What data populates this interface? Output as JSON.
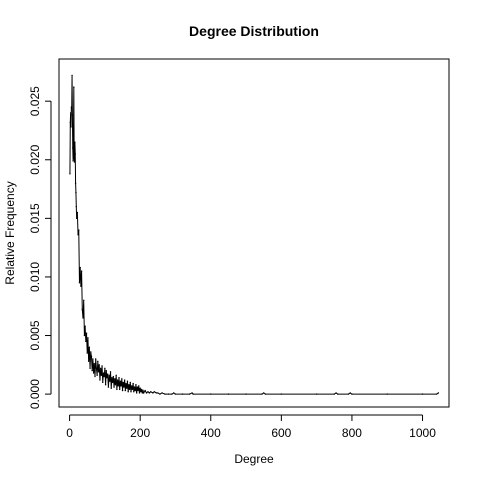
{
  "chart_data": {
    "type": "line",
    "title": "Degree Distribution",
    "xlabel": "Degree",
    "ylabel": "Relative Frequency",
    "xlim": [
      -30,
      1075
    ],
    "ylim": [
      -0.0011,
      0.0286
    ],
    "x_ticks": [
      0,
      200,
      400,
      600,
      800,
      1000
    ],
    "x_tick_labels": [
      "0",
      "200",
      "400",
      "600",
      "800",
      "1000"
    ],
    "y_ticks": [
      0,
      0.005,
      0.01,
      0.015,
      0.02,
      0.025
    ],
    "y_tick_labels": [
      "0.000",
      "0.005",
      "0.010",
      "0.015",
      "0.020",
      "0.025"
    ],
    "grid": false,
    "legend": "none",
    "line_color": "#000000",
    "series": [
      {
        "x": [
          1,
          2,
          3,
          4,
          5,
          6,
          7,
          8,
          9,
          10,
          11,
          12,
          13,
          14,
          15,
          16,
          17,
          18,
          19,
          20,
          22,
          24,
          26,
          28,
          30,
          32,
          34,
          36,
          38,
          40,
          42,
          44,
          46,
          48,
          50,
          52,
          54,
          56,
          58,
          60,
          62,
          64,
          66,
          68,
          70,
          72,
          74,
          76,
          78,
          80,
          82,
          84,
          86,
          88,
          90,
          92,
          94,
          96,
          98,
          100,
          102,
          104,
          106,
          108,
          110,
          112,
          114,
          116,
          118,
          120,
          122,
          124,
          126,
          128,
          130,
          132,
          134,
          136,
          138,
          140,
          142,
          144,
          146,
          148,
          150,
          152,
          154,
          156,
          158,
          160,
          162,
          164,
          166,
          168,
          170,
          172,
          174,
          176,
          178,
          180,
          182,
          184,
          186,
          188,
          190,
          192,
          194,
          196,
          198,
          200,
          202,
          204,
          206,
          208,
          210,
          214,
          218,
          222,
          226,
          230,
          236,
          240,
          246,
          250,
          256,
          262,
          270,
          280,
          290,
          295,
          300,
          320,
          340,
          347,
          350,
          400,
          450,
          500,
          545,
          550,
          555,
          600,
          700,
          750,
          755,
          760,
          790,
          795,
          800,
          900,
          1000,
          1040,
          1045
        ],
        "values": [
          0.0188,
          0.0232,
          0.024,
          0.0228,
          0.0245,
          0.0244,
          0.0272,
          0.0238,
          0.021,
          0.0199,
          0.022,
          0.0262,
          0.0201,
          0.0198,
          0.0215,
          0.0205,
          0.018,
          0.0172,
          0.016,
          0.015,
          0.0155,
          0.0136,
          0.014,
          0.0095,
          0.0108,
          0.0092,
          0.0105,
          0.0072,
          0.0065,
          0.008,
          0.005,
          0.0058,
          0.0045,
          0.0052,
          0.0035,
          0.0048,
          0.0028,
          0.004,
          0.0022,
          0.0036,
          0.0032,
          0.002,
          0.003,
          0.0018,
          0.0026,
          0.0015,
          0.003,
          0.0022,
          0.0016,
          0.0028,
          0.0019,
          0.0025,
          0.0012,
          0.0022,
          0.0016,
          0.0024,
          0.001,
          0.0018,
          0.0015,
          0.0022,
          0.0008,
          0.002,
          0.0014,
          0.0017,
          0.0006,
          0.0016,
          0.0011,
          0.0019,
          0.0005,
          0.0014,
          0.001,
          0.0015,
          0.0006,
          0.0013,
          0.0008,
          0.0016,
          0.0004,
          0.0012,
          0.0007,
          0.0014,
          0.0004,
          0.0011,
          0.0007,
          0.0013,
          0.0003,
          0.001,
          0.0006,
          0.0012,
          0.0003,
          0.0009,
          0.0005,
          0.0011,
          0.0002,
          0.0008,
          0.0004,
          0.001,
          0.0002,
          0.0007,
          0.0004,
          0.0009,
          0.0002,
          0.0006,
          0.0003,
          0.0008,
          0.0001,
          0.0006,
          0.0003,
          0.0007,
          0.0001,
          0.0005,
          0.0002,
          0.0004,
          0.0001,
          0.0003,
          0.0001,
          0.0003,
          0.0001,
          0.0002,
          0.0001,
          0.0002,
          0.0001,
          0.0002,
          0.0001,
          0.0001,
          0.0,
          0.0001,
          0.0,
          0.0,
          0.0,
          0.0001,
          0.0,
          0.0,
          0.0,
          0.0001,
          0.0,
          0.0,
          0.0,
          0.0,
          0.0,
          0.0001,
          0.0,
          0.0,
          0.0,
          0.0,
          0.0001,
          0.0,
          0.0,
          0.0001,
          0.0,
          0.0,
          0.0,
          0.0,
          0.0001
        ]
      }
    ]
  }
}
